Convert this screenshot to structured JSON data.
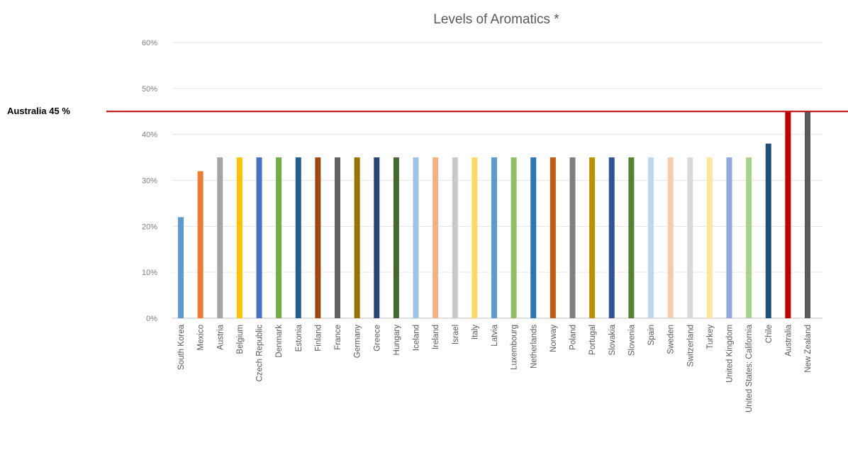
{
  "chart_data": {
    "type": "bar",
    "title": "Levels of Aromatics *",
    "xlabel": "",
    "ylabel": "",
    "ylim": [
      0,
      60
    ],
    "y_ticks": [
      "0%",
      "10%",
      "20%",
      "30%",
      "40%",
      "50%",
      "60%"
    ],
    "y_tick_values": [
      0,
      10,
      20,
      30,
      40,
      50,
      60
    ],
    "grid": true,
    "categories": [
      "South Korea",
      "Mexico",
      "Austria",
      "Belgium",
      "Czech Republic",
      "Denmark",
      "Estonia",
      "Finland",
      "France",
      "Germany",
      "Greece",
      "Hungary",
      "Iceland",
      "Ireland",
      "Israel",
      "Italy",
      "Latvia",
      "Luxembourg",
      "Netherlands",
      "Norway",
      "Poland",
      "Portugal",
      "Slovakia",
      "Slovenia",
      "Spain",
      "Sweden",
      "Switzerland",
      "Turkey",
      "United Kingdom",
      "United States: California",
      "Chile",
      "Australia",
      "New Zealand"
    ],
    "values": [
      22,
      32,
      35,
      35,
      35,
      35,
      35,
      35,
      35,
      35,
      35,
      35,
      35,
      35,
      35,
      35,
      35,
      35,
      35,
      35,
      35,
      35,
      35,
      35,
      35,
      35,
      35,
      35,
      35,
      35,
      38,
      45,
      45
    ],
    "colors": [
      "#5b9bd5",
      "#ed7d31",
      "#a5a5a5",
      "#ffc000",
      "#4472c4",
      "#70ad47",
      "#255e91",
      "#9e480e",
      "#636363",
      "#997300",
      "#264478",
      "#43682b",
      "#9dc3e6",
      "#f4b183",
      "#c9c9c9",
      "#ffd966",
      "#5b9bd5",
      "#8fbf60",
      "#2e75b6",
      "#c55a11",
      "#7f7f7f",
      "#bf9000",
      "#2f5597",
      "#548235",
      "#bdd7ee",
      "#f8cbad",
      "#d9d9d9",
      "#ffe699",
      "#8faadc",
      "#a9d18e",
      "#1f4e79",
      "#c00000",
      "#595959"
    ],
    "reference_line": {
      "label": "Australia 45 %",
      "value": 45,
      "color": "#c00000"
    }
  }
}
